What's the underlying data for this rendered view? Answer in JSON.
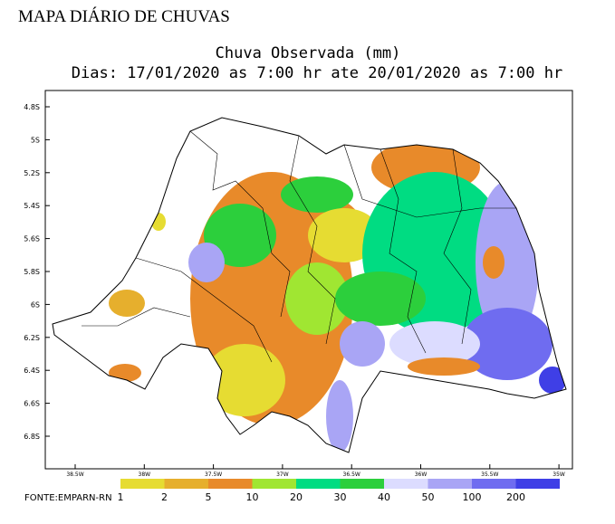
{
  "header": "MAPA DIÁRIO DE CHUVAS",
  "title": "Chuva Observada (mm)",
  "subtitle": "Dias: 17/01/2020 as 7:00 hr ate 20/01/2020 as 7:00 hr",
  "lat_labels": [
    "4.8S",
    "5S",
    "5.2S",
    "5.4S",
    "5.6S",
    "5.8S",
    "6S",
    "6.2S",
    "6.4S",
    "6.6S",
    "6.8S"
  ],
  "lon_labels": [
    "38.5W",
    "38W",
    "37.5W",
    "37W",
    "36.5W",
    "36W",
    "35.5W",
    "35W"
  ],
  "legend": {
    "labels": [
      "1",
      "2",
      "5",
      "10",
      "20",
      "30",
      "40",
      "50",
      "100",
      "200"
    ],
    "colors": [
      "#e6dc32",
      "#e6af2d",
      "#e88a2a",
      "#a0e632",
      "#00dc82",
      "#2ccf3c",
      "#dcdcff",
      "#a9a5f5",
      "#6f6cf0",
      "#3f3fe6"
    ]
  },
  "source": "FONTE:EMPARN-RN"
}
